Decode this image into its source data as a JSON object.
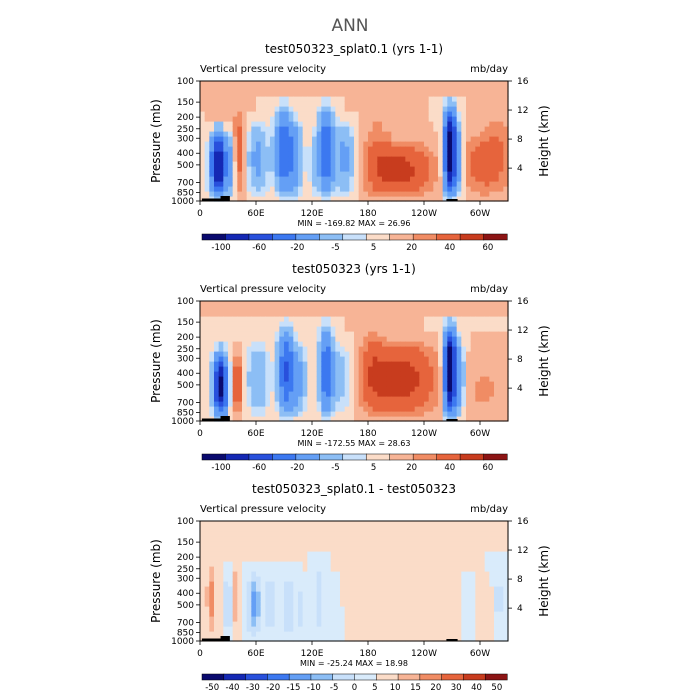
{
  "figure": {
    "suptitle": "ANN",
    "colors": {
      "scale13": [
        "#0a0a6e",
        "#1428b4",
        "#2850dc",
        "#3c78f0",
        "#649ff5",
        "#8cbef5",
        "#c8e0fa",
        "#fbdcc8",
        "#f7b496",
        "#f08c64",
        "#e6643c",
        "#c83c1e",
        "#8c1414"
      ],
      "scale14": [
        "#0a0a6e",
        "#1428b4",
        "#2850dc",
        "#3c78f0",
        "#649ff5",
        "#8cbef5",
        "#c8e0fa",
        "#d9ebfb",
        "#fbdcc8",
        "#f7b496",
        "#f08c64",
        "#e6643c",
        "#c83c1e",
        "#8c1414"
      ],
      "topography": "#000000"
    }
  },
  "chart_data": [
    {
      "type": "heatmap",
      "title": "test050323_splat0.1 (yrs 1-1)",
      "left_label": "Vertical pressure velocity",
      "units": "mb/day",
      "ylabel": "Pressure (mb)",
      "y2label": "Height (km)",
      "y_ticks": [
        "100",
        "150",
        "200",
        "250",
        "300",
        "400",
        "500",
        "700",
        "850",
        "1000"
      ],
      "y_scale": "log",
      "ylim": [
        1000,
        100
      ],
      "y2_ticks": [
        "16",
        "12",
        "8",
        "4"
      ],
      "x_ticks": [
        "0",
        "60E",
        "120E",
        "180",
        "120W",
        "60W"
      ],
      "xlim": [
        0,
        330
      ],
      "stats": "MIN = -169.82   MAX =  26.96",
      "min": -169.82,
      "max": 26.96,
      "colorbar_labels": [
        "-100",
        "-60",
        "-20",
        "-5",
        "5",
        "20",
        "40",
        "60"
      ],
      "colorbar_levels": [
        -120,
        -100,
        -80,
        -60,
        -40,
        -20,
        -10,
        -5,
        0,
        5,
        10,
        20,
        40,
        60
      ],
      "scale": "scale13",
      "features": [
        {
          "lon": 20,
          "value": -110,
          "width": 8,
          "pmin": 250
        },
        {
          "lon": 34,
          "value": -30,
          "width": 3,
          "pmin": 250
        },
        {
          "lon": 42,
          "value": 14,
          "width": 7,
          "pmin": 150
        },
        {
          "lon": 62,
          "value": -25,
          "width": 11,
          "pmin": 200
        },
        {
          "lon": 90,
          "value": -55,
          "width": 9,
          "pmin": 150
        },
        {
          "lon": 102,
          "value": -30,
          "width": 8,
          "pmin": 200
        },
        {
          "lon": 122,
          "value": -12,
          "width": 5,
          "pmin": 250
        },
        {
          "lon": 135,
          "value": -60,
          "width": 8,
          "pmin": 150
        },
        {
          "lon": 155,
          "value": -25,
          "width": 10,
          "pmin": 200
        },
        {
          "lon": 215,
          "value": 24,
          "width": 32,
          "pmin": 300
        },
        {
          "lon": 190,
          "value": 8,
          "width": 14,
          "pmin": 150
        },
        {
          "lon": 268,
          "value": -125,
          "width": 6,
          "pmin": 150
        },
        {
          "lon": 277,
          "value": -25,
          "width": 5,
          "pmin": 200
        },
        {
          "lon": 300,
          "value": 12,
          "width": 22,
          "pmin": 250
        },
        {
          "lon": 320,
          "value": 8,
          "width": 18,
          "pmin": 150
        }
      ]
    },
    {
      "type": "heatmap",
      "title": "test050323 (yrs 1-1)",
      "left_label": "Vertical pressure velocity",
      "units": "mb/day",
      "ylabel": "Pressure (mb)",
      "y2label": "Height (km)",
      "y_ticks": [
        "100",
        "150",
        "200",
        "250",
        "300",
        "400",
        "500",
        "700",
        "850",
        "1000"
      ],
      "y_scale": "log",
      "ylim": [
        1000,
        100
      ],
      "y2_ticks": [
        "16",
        "12",
        "8",
        "4"
      ],
      "x_ticks": [
        "0",
        "60E",
        "120E",
        "180",
        "120W",
        "60W"
      ],
      "xlim": [
        0,
        330
      ],
      "stats": "MIN = -172.55   MAX =  28.63",
      "min": -172.55,
      "max": 28.63,
      "colorbar_labels": [
        "-100",
        "-60",
        "-20",
        "-5",
        "5",
        "20",
        "40",
        "60"
      ],
      "colorbar_levels": [
        -120,
        -100,
        -80,
        -60,
        -40,
        -20,
        -10,
        -5,
        0,
        5,
        10,
        20,
        40,
        60
      ],
      "scale": "scale13",
      "features": [
        {
          "lon": 22,
          "value": -110,
          "width": 7,
          "pmin": 250
        },
        {
          "lon": 40,
          "value": 18,
          "width": 6,
          "pmin": 250
        },
        {
          "lon": 62,
          "value": -20,
          "width": 12,
          "pmin": 200
        },
        {
          "lon": 92,
          "value": -60,
          "width": 8,
          "pmin": 150
        },
        {
          "lon": 105,
          "value": -25,
          "width": 9,
          "pmin": 200
        },
        {
          "lon": 135,
          "value": -55,
          "width": 7,
          "pmin": 150
        },
        {
          "lon": 150,
          "value": -15,
          "width": 12,
          "pmin": 200
        },
        {
          "lon": 215,
          "value": 26,
          "width": 36,
          "pmin": 200
        },
        {
          "lon": 185,
          "value": 10,
          "width": 12,
          "pmin": 150
        },
        {
          "lon": 268,
          "value": -130,
          "width": 6,
          "pmin": 150
        },
        {
          "lon": 278,
          "value": -30,
          "width": 5,
          "pmin": 200
        },
        {
          "lon": 305,
          "value": 6,
          "width": 24,
          "pmin": 300
        }
      ]
    },
    {
      "type": "heatmap",
      "title": "test050323_splat0.1 - test050323",
      "left_label": "Vertical pressure velocity",
      "units": "mb/day",
      "ylabel": "Pressure (mb)",
      "y2label": "Height (km)",
      "y_ticks": [
        "100",
        "150",
        "200",
        "250",
        "300",
        "400",
        "500",
        "700",
        "850",
        "1000"
      ],
      "y_scale": "log",
      "ylim": [
        1000,
        100
      ],
      "y2_ticks": [
        "16",
        "12",
        "8",
        "4"
      ],
      "x_ticks": [
        "0",
        "60E",
        "120E",
        "180",
        "120W",
        "60W"
      ],
      "xlim": [
        0,
        330
      ],
      "stats": "MIN = -25.24   MAX =  18.98",
      "min": -25.24,
      "max": 18.98,
      "colorbar_labels": [
        "-50",
        "-40",
        "-30",
        "-20",
        "-15",
        "-10",
        "-5",
        "0",
        "5",
        "10",
        "15",
        "20",
        "30",
        "40",
        "50"
      ],
      "colorbar_levels": [
        -60,
        -50,
        -40,
        -30,
        -20,
        -15,
        -10,
        -5,
        0,
        5,
        10,
        15,
        20,
        30,
        40
      ],
      "scale": "scale14",
      "features": [
        {
          "lon": 12,
          "value": 12,
          "width": 5,
          "pmin": 200
        },
        {
          "lon": 30,
          "value": -18,
          "width": 3,
          "pmin": 250
        },
        {
          "lon": 38,
          "value": 8,
          "width": 4,
          "pmin": 200
        },
        {
          "lon": 58,
          "value": -18,
          "width": 7,
          "pmin": 250
        },
        {
          "lon": 75,
          "value": -10,
          "width": 6,
          "pmin": 250
        },
        {
          "lon": 95,
          "value": -14,
          "width": 4,
          "pmin": 250
        },
        {
          "lon": 108,
          "value": -8,
          "width": 3,
          "pmin": 300
        },
        {
          "lon": 128,
          "value": -10,
          "width": 4,
          "pmin": 200
        },
        {
          "lon": 145,
          "value": -6,
          "width": 4,
          "pmin": 300
        },
        {
          "lon": 205,
          "value": 4,
          "width": 30,
          "pmin": 200
        },
        {
          "lon": 290,
          "value": -6,
          "width": 4,
          "pmin": 300
        },
        {
          "lon": 300,
          "value": 5,
          "width": 8,
          "pmin": 300
        },
        {
          "lon": 320,
          "value": -8,
          "width": 4,
          "pmin": 200
        }
      ]
    }
  ]
}
